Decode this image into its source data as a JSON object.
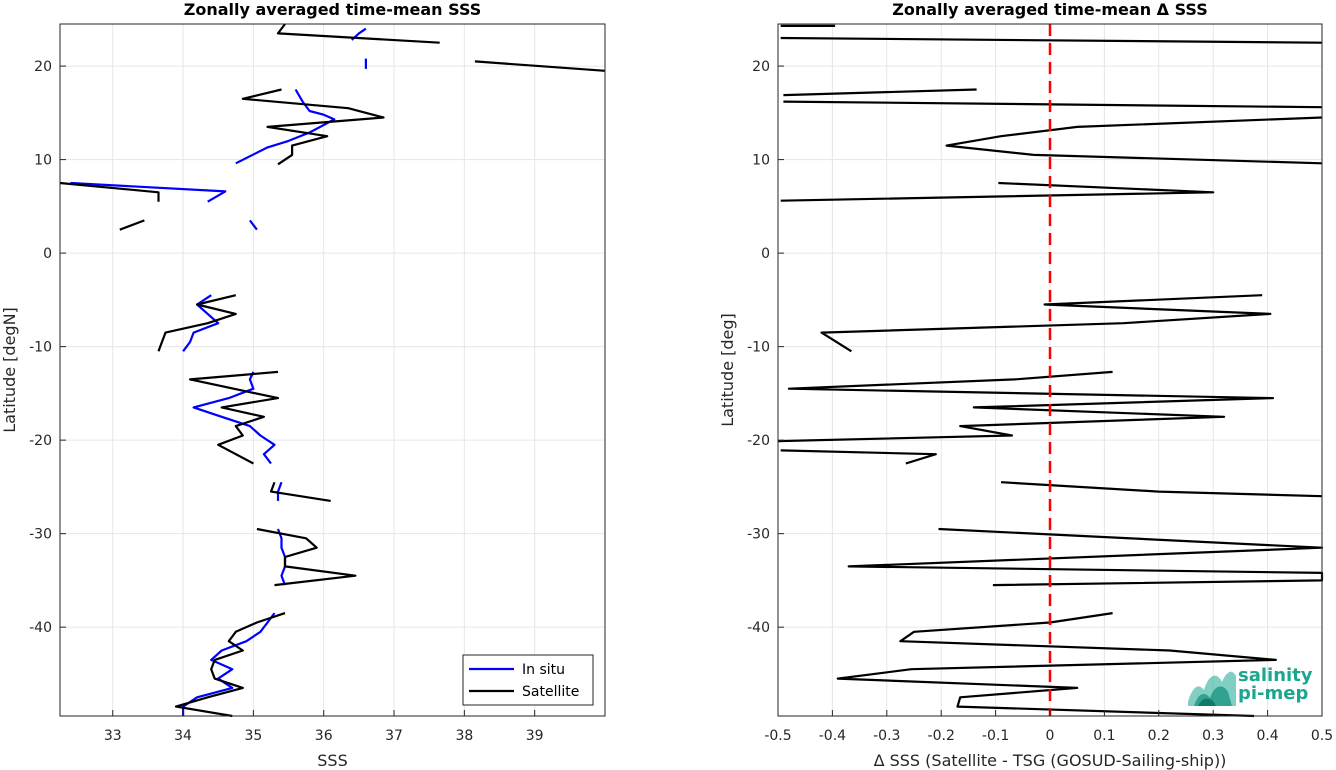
{
  "logo": {
    "line1": "salinity",
    "line2": "pi-mep",
    "color": "#1aa78f"
  },
  "chart_data": [
    {
      "type": "line",
      "title": "Zonally averaged time-mean SSS",
      "xlabel": "SSS",
      "ylabel": "Latitude [degN]",
      "xlim": [
        32.25,
        40
      ],
      "ylim": [
        -49.5,
        24.5
      ],
      "xticks": [
        33,
        34,
        35,
        36,
        37,
        38,
        39
      ],
      "yticks": [
        -40,
        -30,
        -20,
        -10,
        0,
        10,
        20
      ],
      "grid": true,
      "legend": {
        "location": "bottom-right",
        "entries": [
          {
            "name": "In situ",
            "color": "#0000ff"
          },
          {
            "name": "Satellite",
            "color": "#000000"
          }
        ]
      },
      "series": [
        {
          "name": "In situ",
          "color": "#0000ff",
          "segments": [
            [
              [
                36.6,
                24
              ],
              [
                36.5,
                23.5
              ],
              [
                36.4,
                22.8
              ]
            ],
            [
              [
                36.6,
                20.8
              ],
              [
                36.6,
                19.7
              ]
            ],
            [
              [
                35.6,
                17.5
              ],
              [
                35.7,
                16.2
              ],
              [
                35.8,
                15.2
              ],
              [
                36.0,
                14.8
              ],
              [
                36.15,
                14.3
              ],
              [
                35.8,
                12.9
              ],
              [
                35.5,
                12.0
              ],
              [
                35.2,
                11.3
              ],
              [
                34.75,
                9.6
              ]
            ],
            [
              [
                32.4,
                7.5
              ],
              [
                34.6,
                6.6
              ],
              [
                34.35,
                5.5
              ]
            ],
            [
              [
                34.95,
                3.5
              ],
              [
                35.05,
                2.5
              ]
            ],
            [
              [
                34.4,
                -4.5
              ],
              [
                34.2,
                -5.5
              ],
              [
                34.35,
                -6.5
              ],
              [
                34.5,
                -7.5
              ],
              [
                34.15,
                -8.5
              ],
              [
                34.1,
                -9.5
              ],
              [
                34.0,
                -10.5
              ]
            ],
            [
              [
                35.0,
                -12.7
              ],
              [
                34.95,
                -13.5
              ],
              [
                35.0,
                -14.5
              ],
              [
                34.65,
                -15.5
              ],
              [
                34.15,
                -16.5
              ],
              [
                34.55,
                -17.5
              ],
              [
                34.95,
                -18.5
              ],
              [
                35.1,
                -19.5
              ],
              [
                35.3,
                -20.5
              ],
              [
                35.15,
                -21.5
              ],
              [
                35.25,
                -22.5
              ]
            ],
            [
              [
                35.4,
                -24.5
              ],
              [
                35.35,
                -25.5
              ],
              [
                35.35,
                -26.5
              ]
            ],
            [
              [
                35.35,
                -29.5
              ],
              [
                35.4,
                -30.5
              ],
              [
                35.4,
                -31.5
              ],
              [
                35.45,
                -32.5
              ],
              [
                35.45,
                -33.5
              ],
              [
                35.4,
                -34.5
              ],
              [
                35.45,
                -35.5
              ]
            ],
            [
              [
                35.3,
                -38.5
              ],
              [
                35.2,
                -39.5
              ],
              [
                35.1,
                -40.5
              ],
              [
                34.9,
                -41.5
              ],
              [
                34.55,
                -42.5
              ],
              [
                34.4,
                -43.5
              ],
              [
                34.7,
                -44.5
              ],
              [
                34.5,
                -45.5
              ],
              [
                34.7,
                -46.5
              ],
              [
                34.2,
                -47.5
              ],
              [
                34.0,
                -48.5
              ],
              [
                34.0,
                -49.5
              ]
            ]
          ]
        },
        {
          "name": "Satellite",
          "color": "#000000",
          "segments": [
            [
              [
                35.45,
                24.5
              ],
              [
                35.35,
                23.5
              ],
              [
                37.65,
                22.5
              ]
            ],
            [
              [
                38.15,
                20.5
              ],
              [
                40.0,
                19.5
              ]
            ],
            [
              [
                35.4,
                17.5
              ],
              [
                34.85,
                16.5
              ],
              [
                36.35,
                15.5
              ],
              [
                36.85,
                14.5
              ],
              [
                35.2,
                13.5
              ],
              [
                36.05,
                12.5
              ],
              [
                35.55,
                11.5
              ],
              [
                35.55,
                10.5
              ],
              [
                35.35,
                9.5
              ]
            ],
            [
              [
                32.25,
                7.5
              ],
              [
                33.65,
                6.5
              ],
              [
                33.65,
                5.5
              ]
            ],
            [
              [
                33.45,
                3.5
              ],
              [
                33.1,
                2.5
              ]
            ],
            [
              [
                34.75,
                -4.5
              ],
              [
                34.2,
                -5.5
              ],
              [
                34.75,
                -6.5
              ],
              [
                34.35,
                -7.5
              ],
              [
                33.75,
                -8.5
              ],
              [
                33.7,
                -9.5
              ],
              [
                33.65,
                -10.5
              ]
            ],
            [
              [
                35.35,
                -12.7
              ],
              [
                34.1,
                -13.5
              ],
              [
                35.35,
                -15.5
              ],
              [
                34.55,
                -16.5
              ],
              [
                35.15,
                -17.5
              ],
              [
                34.75,
                -18.5
              ],
              [
                34.85,
                -19.5
              ],
              [
                34.5,
                -20.5
              ],
              [
                35.0,
                -22.5
              ]
            ],
            [
              [
                35.3,
                -24.5
              ],
              [
                35.25,
                -25.5
              ],
              [
                36.1,
                -26.5
              ]
            ],
            [
              [
                35.05,
                -29.5
              ],
              [
                35.75,
                -30.5
              ],
              [
                35.9,
                -31.5
              ],
              [
                35.45,
                -32.5
              ],
              [
                35.45,
                -33.5
              ],
              [
                36.45,
                -34.5
              ],
              [
                35.3,
                -35.5
              ]
            ],
            [
              [
                35.45,
                -38.5
              ],
              [
                35.05,
                -39.5
              ],
              [
                34.75,
                -40.5
              ],
              [
                34.65,
                -41.5
              ],
              [
                34.85,
                -42.5
              ],
              [
                34.45,
                -43.5
              ],
              [
                34.4,
                -44.5
              ],
              [
                34.45,
                -45.5
              ],
              [
                34.85,
                -46.5
              ],
              [
                34.35,
                -47.5
              ],
              [
                33.9,
                -48.5
              ],
              [
                34.7,
                -49.5
              ]
            ]
          ]
        }
      ]
    },
    {
      "type": "line",
      "title": "Zonally averaged time-mean Δ SSS",
      "xlabel": "Δ SSS (Satellite - TSG (GOSUD-Sailing-ship))",
      "ylabel": "Latitude [deg]",
      "xlim": [
        -0.5,
        0.5
      ],
      "ylim": [
        -49.5,
        24.5
      ],
      "xticks": [
        -0.5,
        -0.4,
        -0.3,
        -0.2,
        -0.1,
        0,
        0.1,
        0.2,
        0.3,
        0.4,
        0.5
      ],
      "xticklabels": [
        "-0.5",
        "-0.4",
        "-0.3",
        "-0.2",
        "-0.1",
        "0",
        "0.1",
        "0.2",
        "0.3",
        "0.4",
        "0.5"
      ],
      "yticks": [
        -40,
        -30,
        -20,
        -10,
        0,
        10,
        20
      ],
      "grid": true,
      "reference_line": {
        "x": 0,
        "style": "dashed",
        "color": "#ff0000"
      },
      "series": [
        {
          "name": "Satellite - TSG",
          "color": "#000000",
          "segments": [
            [
              [
                -0.495,
                24.3
              ],
              [
                -0.395,
                24.3
              ]
            ],
            [
              [
                -0.495,
                23.0
              ],
              [
                0.5,
                22.5
              ]
            ],
            [
              [
                -0.49,
                16.9
              ],
              [
                -0.135,
                17.5
              ]
            ],
            [
              [
                -0.49,
                16.2
              ],
              [
                0.5,
                15.6
              ]
            ],
            [
              [
                0.5,
                14.5
              ],
              [
                0.05,
                13.5
              ],
              [
                -0.09,
                12.5
              ],
              [
                -0.19,
                11.5
              ],
              [
                -0.03,
                10.5
              ],
              [
                0.5,
                9.6
              ]
            ],
            [
              [
                -0.095,
                7.5
              ],
              [
                0.3,
                6.5
              ],
              [
                -0.495,
                5.6
              ]
            ],
            [
              [
                0.39,
                -4.5
              ],
              [
                -0.01,
                -5.5
              ],
              [
                0.405,
                -6.5
              ],
              [
                0.135,
                -7.5
              ],
              [
                -0.42,
                -8.5
              ],
              [
                -0.365,
                -10.5
              ]
            ],
            [
              [
                0.115,
                -12.7
              ],
              [
                -0.065,
                -13.5
              ],
              [
                -0.48,
                -14.5
              ],
              [
                0.41,
                -15.5
              ],
              [
                -0.14,
                -16.5
              ],
              [
                0.32,
                -17.5
              ],
              [
                -0.165,
                -18.5
              ],
              [
                -0.07,
                -19.5
              ],
              [
                -0.5,
                -20.1
              ]
            ],
            [
              [
                -0.495,
                -21.1
              ],
              [
                -0.21,
                -21.5
              ],
              [
                -0.265,
                -22.5
              ]
            ],
            [
              [
                -0.09,
                -24.5
              ],
              [
                0.2,
                -25.5
              ],
              [
                0.5,
                -26.0
              ]
            ],
            [
              [
                -0.205,
                -29.5
              ],
              [
                0.5,
                -31.5
              ],
              [
                -0.37,
                -33.5
              ],
              [
                0.5,
                -34.2
              ],
              [
                0.5,
                -35.0
              ],
              [
                -0.105,
                -35.5
              ]
            ],
            [
              [
                0.115,
                -38.5
              ],
              [
                0.0,
                -39.5
              ],
              [
                -0.25,
                -40.5
              ],
              [
                -0.275,
                -41.5
              ],
              [
                0.22,
                -42.5
              ],
              [
                0.415,
                -43.5
              ],
              [
                -0.255,
                -44.5
              ],
              [
                -0.39,
                -45.5
              ],
              [
                0.05,
                -46.5
              ],
              [
                -0.165,
                -47.5
              ],
              [
                -0.17,
                -48.5
              ],
              [
                0.375,
                -49.5
              ]
            ]
          ]
        }
      ]
    }
  ]
}
